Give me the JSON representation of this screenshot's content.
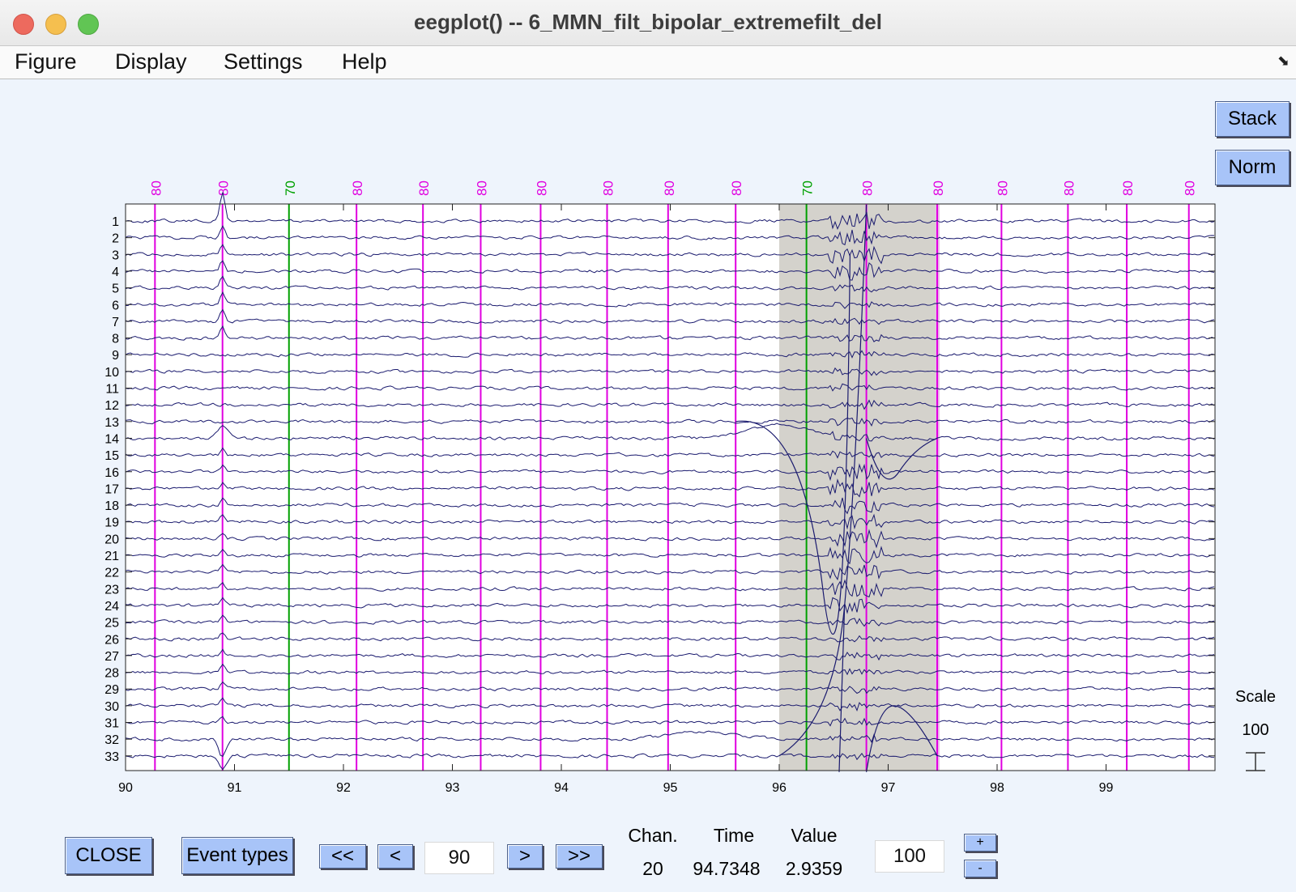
{
  "window": {
    "title": "eegplot() -- 6_MMN_filt_bipolar_extremefilt_del"
  },
  "menu": {
    "items": [
      "Figure",
      "Display",
      "Settings",
      "Help"
    ]
  },
  "side_buttons": {
    "stack": "Stack",
    "norm": "Norm"
  },
  "scale_panel": {
    "label": "Scale",
    "value": "100"
  },
  "bottom": {
    "close": "CLOSE",
    "event_types": "Event types",
    "nav_first": "<<",
    "nav_prev": "<",
    "position": "90",
    "nav_next": ">",
    "nav_last": ">>",
    "chan_label": "Chan.",
    "time_label": "Time",
    "value_label": "Value",
    "chan_value": "20",
    "time_value": "94.7348",
    "value_value": "2.9359",
    "scale_input": "100",
    "plus": "+",
    "minus": "-"
  },
  "colors": {
    "trace": "#1a1a6e",
    "event_80": "#e000e0",
    "event_70": "#00a000",
    "rejection": "#d4d2cc",
    "button": "#a8c4f8"
  },
  "chart_data": {
    "type": "line",
    "xlim": [
      90,
      100
    ],
    "x_ticks": [
      90,
      91,
      92,
      93,
      94,
      95,
      96,
      97,
      98,
      99
    ],
    "channels": [
      "1",
      "2",
      "3",
      "4",
      "5",
      "6",
      "7",
      "8",
      "9",
      "10",
      "11",
      "12",
      "13",
      "14",
      "15",
      "16",
      "17",
      "18",
      "19",
      "20",
      "21",
      "22",
      "23",
      "24",
      "25",
      "26",
      "27",
      "28",
      "29",
      "30",
      "31",
      "32",
      "33"
    ],
    "events": [
      {
        "type": "80",
        "time": 90.27
      },
      {
        "type": "80",
        "time": 90.89
      },
      {
        "type": "70",
        "time": 91.5
      },
      {
        "type": "80",
        "time": 92.12
      },
      {
        "type": "80",
        "time": 92.73
      },
      {
        "type": "80",
        "time": 93.26
      },
      {
        "type": "80",
        "time": 93.81
      },
      {
        "type": "80",
        "time": 94.42
      },
      {
        "type": "80",
        "time": 94.98
      },
      {
        "type": "80",
        "time": 95.6
      },
      {
        "type": "70",
        "time": 96.25
      },
      {
        "type": "80",
        "time": 96.8
      },
      {
        "type": "80",
        "time": 97.45
      },
      {
        "type": "80",
        "time": 98.04
      },
      {
        "type": "80",
        "time": 98.65
      },
      {
        "type": "80",
        "time": 99.19
      },
      {
        "type": "80",
        "time": 99.76
      }
    ],
    "rejection_window": [
      96.0,
      97.45
    ]
  }
}
